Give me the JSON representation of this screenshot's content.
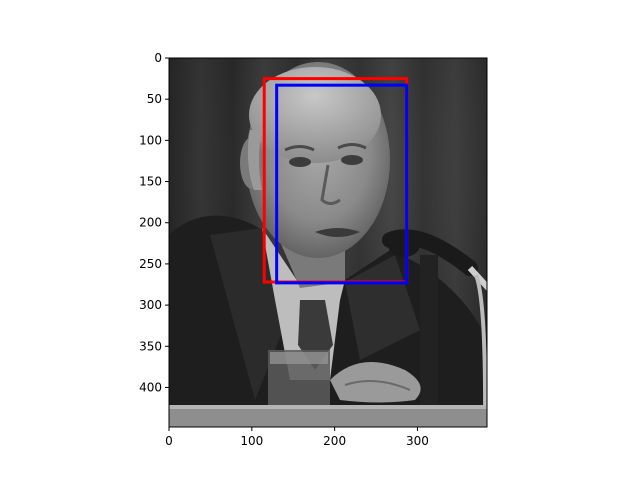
{
  "figure": {
    "image_description_icon": "grayscale-portrait-photo",
    "x_axis": {
      "min": 0,
      "max": 384,
      "ticks": [
        0,
        100,
        200,
        300
      ]
    },
    "y_axis": {
      "min": 0,
      "max": 448,
      "inverted": true,
      "ticks": [
        0,
        50,
        100,
        150,
        200,
        250,
        300,
        350,
        400
      ]
    },
    "boxes": [
      {
        "name": "red-box",
        "color": "#ff0000",
        "x0": 115,
        "y0": 25,
        "x1": 287,
        "y1": 272
      },
      {
        "name": "blue-box",
        "color": "#0000ff",
        "x0": 130,
        "y0": 33,
        "x1": 287,
        "y1": 273
      }
    ]
  }
}
